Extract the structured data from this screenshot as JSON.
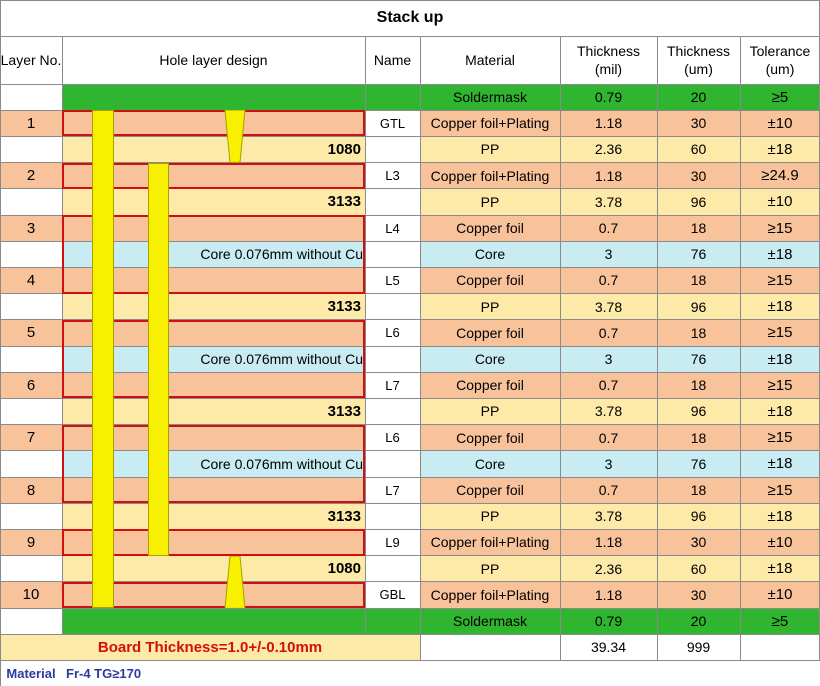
{
  "title": "Stack up",
  "headers": {
    "layer_no": "Layer No.",
    "hole_design": "Hole layer design",
    "name": "Name",
    "material": "Material",
    "thick_mil": [
      "Thickness",
      "(mil)"
    ],
    "thick_um": [
      "Thickness",
      "(um)"
    ],
    "tolerance": [
      "Tolerance",
      "(um)"
    ]
  },
  "rows": [
    {
      "layer": "",
      "label": "",
      "name": "",
      "material": "Soldermask",
      "mil": "0.79",
      "um": "20",
      "tol": "≥5",
      "color": "#2fb52f"
    },
    {
      "layer": "1",
      "label": "",
      "name": "GTL",
      "material": "Copper foil+Plating",
      "mil": "1.18",
      "um": "30",
      "tol": "±10",
      "color": "#f8c29b"
    },
    {
      "layer": "",
      "label": "1080",
      "name": "",
      "material": "PP",
      "mil": "2.36",
      "um": "60",
      "tol": "±18",
      "color": "#fde9a8"
    },
    {
      "layer": "2",
      "label": "",
      "name": "L3",
      "material": "Copper foil+Plating",
      "mil": "1.18",
      "um": "30",
      "tol": "≥24.9",
      "color": "#f8c29b"
    },
    {
      "layer": "",
      "label": "3133",
      "name": "",
      "material": "PP",
      "mil": "3.78",
      "um": "96",
      "tol": "±10",
      "color": "#fde9a8"
    },
    {
      "layer": "3",
      "label": "",
      "name": "L4",
      "material": "Copper foil",
      "mil": "0.7",
      "um": "18",
      "tol": "≥15",
      "color": "#f8c29b"
    },
    {
      "layer": "",
      "label": "Core 0.076mm without Cu",
      "name": "",
      "material": "Core",
      "mil": "3",
      "um": "76",
      "tol": "±18",
      "color": "#c8ecf2"
    },
    {
      "layer": "4",
      "label": "",
      "name": "L5",
      "material": "Copper foil",
      "mil": "0.7",
      "um": "18",
      "tol": "≥15",
      "color": "#f8c29b"
    },
    {
      "layer": "",
      "label": "3133",
      "name": "",
      "material": "PP",
      "mil": "3.78",
      "um": "96",
      "tol": "±18",
      "color": "#fde9a8"
    },
    {
      "layer": "5",
      "label": "",
      "name": "L6",
      "material": "Copper foil",
      "mil": "0.7",
      "um": "18",
      "tol": "≥15",
      "color": "#f8c29b"
    },
    {
      "layer": "",
      "label": "Core 0.076mm without Cu",
      "name": "",
      "material": "Core",
      "mil": "3",
      "um": "76",
      "tol": "±18",
      "color": "#c8ecf2"
    },
    {
      "layer": "6",
      "label": "",
      "name": "L7",
      "material": "Copper foil",
      "mil": "0.7",
      "um": "18",
      "tol": "≥15",
      "color": "#f8c29b"
    },
    {
      "layer": "",
      "label": "3133",
      "name": "",
      "material": "PP",
      "mil": "3.78",
      "um": "96",
      "tol": "±18",
      "color": "#fde9a8"
    },
    {
      "layer": "7",
      "label": "",
      "name": "L6",
      "material": "Copper foil",
      "mil": "0.7",
      "um": "18",
      "tol": "≥15",
      "color": "#f8c29b"
    },
    {
      "layer": "",
      "label": "Core 0.076mm without Cu",
      "name": "",
      "material": "Core",
      "mil": "3",
      "um": "76",
      "tol": "±18",
      "color": "#c8ecf2"
    },
    {
      "layer": "8",
      "label": "",
      "name": "L7",
      "material": "Copper foil",
      "mil": "0.7",
      "um": "18",
      "tol": "≥15",
      "color": "#f8c29b"
    },
    {
      "layer": "",
      "label": "3133",
      "name": "",
      "material": "PP",
      "mil": "3.78",
      "um": "96",
      "tol": "±18",
      "color": "#fde9a8"
    },
    {
      "layer": "9",
      "label": "",
      "name": "L9",
      "material": "Copper foil+Plating",
      "mil": "1.18",
      "um": "30",
      "tol": "±10",
      "color": "#f8c29b"
    },
    {
      "layer": "",
      "label": "1080",
      "name": "",
      "material": "PP",
      "mil": "2.36",
      "um": "60",
      "tol": "±18",
      "color": "#fde9a8"
    },
    {
      "layer": "10",
      "label": "",
      "name": "GBL",
      "material": "Copper foil+Plating",
      "mil": "1.18",
      "um": "30",
      "tol": "±10",
      "color": "#f8c29b"
    },
    {
      "layer": "",
      "label": "",
      "name": "",
      "material": "Soldermask",
      "mil": "0.79",
      "um": "20",
      "tol": "≥5",
      "color": "#2fb52f"
    }
  ],
  "footer": {
    "board_thickness": "Board Thickness=1.0+/-0.10mm",
    "total_mil": "39.34",
    "total_um": "999"
  },
  "material_note": {
    "label": "Material",
    "value": "Fr-4  TG≥170"
  },
  "colors": {
    "copper": "#f8c29b",
    "pp": "#fde9a8",
    "core": "#c8ecf2",
    "soldermask": "#2fb52f",
    "footer": "#fde9a8",
    "via": "#f7f000",
    "red_outline": "#d01010",
    "board_text": "#d01010",
    "note_text": "#2b3a9e"
  }
}
